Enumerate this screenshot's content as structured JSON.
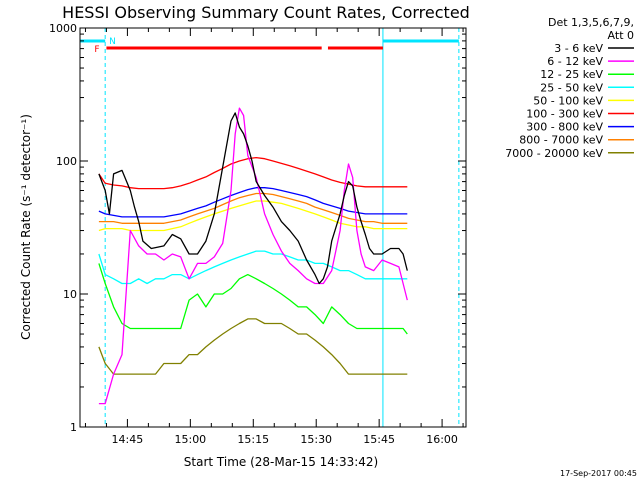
{
  "chart_data": {
    "type": "line",
    "title": "HESSI Observing Summary Count Rates, Corrected",
    "xlabel": "Start Time (28-Mar-15 14:33:42)",
    "ylabel": "Corrected Count Rate (s⁻¹ detector⁻¹)",
    "yscale": "log",
    "ylim": [
      1,
      1000
    ],
    "x_unit": "minutes since 14:33:42",
    "xlim": [
      0,
      92
    ],
    "x_ticks": [
      {
        "label": "14:45",
        "value": 11.3
      },
      {
        "label": "15:00",
        "value": 26.3
      },
      {
        "label": "15:15",
        "value": 41.3
      },
      {
        "label": "15:30",
        "value": 56.3
      },
      {
        "label": "15:45",
        "value": 71.3
      },
      {
        "label": "16:00",
        "value": 86.3
      }
    ],
    "y_ticks": [
      {
        "label": "1",
        "value": 1
      },
      {
        "label": "10",
        "value": 10
      },
      {
        "label": "100",
        "value": 100
      },
      {
        "label": "1000",
        "value": 1000
      }
    ],
    "legend_header": [
      "Det 1,3,5,6,7,9,",
      "Att 0"
    ],
    "legend_position": "right",
    "series": [
      {
        "name": "3 - 6 keV",
        "color": "#000000",
        "x": [
          4.5,
          6,
          7,
          8,
          10,
          12,
          13,
          14,
          15,
          17,
          20,
          22,
          24,
          26,
          28,
          30,
          32,
          34,
          36,
          37,
          38,
          39,
          40,
          41,
          42,
          44,
          46,
          48,
          50,
          52,
          54,
          56,
          57,
          58,
          59,
          60,
          62,
          63,
          64,
          65,
          66,
          67,
          68,
          69,
          70,
          72,
          74,
          76,
          77,
          78
        ],
        "y": [
          80,
          60,
          40,
          80,
          85,
          60,
          45,
          35,
          25,
          22,
          23,
          28,
          26,
          20,
          20,
          25,
          40,
          90,
          200,
          230,
          180,
          160,
          130,
          100,
          70,
          55,
          45,
          35,
          30,
          25,
          18,
          14,
          12,
          13,
          16,
          25,
          40,
          55,
          70,
          65,
          45,
          35,
          28,
          22,
          20,
          20,
          22,
          22,
          20,
          15
        ]
      },
      {
        "name": "6 - 12 keV",
        "color": "#ff00ff",
        "x": [
          4.5,
          6,
          8,
          10,
          12,
          14,
          16,
          18,
          20,
          22,
          24,
          26,
          28,
          30,
          32,
          34,
          36,
          37,
          38,
          39,
          40,
          42,
          44,
          46,
          48,
          50,
          52,
          54,
          56,
          58,
          60,
          62,
          63,
          64,
          65,
          66,
          67,
          68,
          70,
          72,
          74,
          76,
          77,
          78
        ],
        "y": [
          1.5,
          1.5,
          2.5,
          3.5,
          30,
          23,
          20,
          20,
          18,
          20,
          19,
          13,
          17,
          17,
          19,
          24,
          60,
          160,
          250,
          220,
          110,
          75,
          40,
          28,
          21,
          17,
          15,
          13,
          12,
          12,
          15,
          30,
          60,
          95,
          75,
          30,
          20,
          16,
          15,
          18,
          17,
          16,
          12,
          9
        ]
      },
      {
        "name": "12 - 25 keV",
        "color": "#00ff00",
        "x": [
          4.5,
          6,
          8,
          10,
          12,
          14,
          16,
          18,
          20,
          22,
          24,
          26,
          28,
          30,
          32,
          34,
          36,
          38,
          40,
          42,
          44,
          46,
          48,
          50,
          52,
          54,
          56,
          58,
          60,
          62,
          64,
          66,
          68,
          70,
          72,
          74,
          76,
          77,
          78
        ],
        "y": [
          17,
          12,
          8,
          6,
          5.5,
          5.5,
          5.5,
          5.5,
          5.5,
          5.5,
          5.5,
          9,
          10,
          8,
          10,
          10,
          11,
          13,
          14,
          13,
          12,
          11,
          10,
          9,
          8,
          8,
          7,
          6,
          8,
          7,
          6,
          5.5,
          5.5,
          5.5,
          5.5,
          5.5,
          5.5,
          5.5,
          5
        ]
      },
      {
        "name": "25 - 50 keV",
        "color": "#00ffff",
        "x": [
          4.5,
          6,
          8,
          10,
          12,
          14,
          16,
          18,
          20,
          22,
          24,
          26,
          28,
          30,
          32,
          34,
          36,
          38,
          40,
          42,
          44,
          46,
          48,
          50,
          52,
          54,
          56,
          58,
          60,
          62,
          64,
          66,
          68,
          70,
          72,
          74,
          76,
          78
        ],
        "y": [
          20,
          14,
          13,
          12,
          12,
          13,
          12,
          13,
          13,
          14,
          14,
          13,
          14,
          15,
          16,
          17,
          18,
          19,
          20,
          21,
          21,
          20,
          20,
          19,
          18,
          18,
          17,
          17,
          16,
          15,
          15,
          14,
          13,
          13,
          13,
          13,
          13,
          13
        ]
      },
      {
        "name": "50 - 100 keV",
        "color": "#ffff00",
        "x": [
          4.5,
          6,
          8,
          10,
          12,
          14,
          16,
          18,
          20,
          22,
          24,
          26,
          28,
          30,
          32,
          34,
          36,
          38,
          40,
          42,
          44,
          46,
          48,
          50,
          52,
          54,
          56,
          58,
          60,
          62,
          64,
          66,
          68,
          70,
          72,
          74,
          76,
          78
        ],
        "y": [
          30,
          31,
          31,
          31,
          30,
          30,
          30,
          30,
          30,
          31,
          32,
          34,
          36,
          38,
          40,
          42,
          44,
          46,
          48,
          50,
          50,
          49,
          48,
          46,
          44,
          42,
          40,
          38,
          36,
          34,
          33,
          32,
          32,
          31,
          31,
          31,
          31,
          31
        ]
      },
      {
        "name": "100 - 300 keV",
        "color": "#ff0000",
        "x": [
          4.5,
          6,
          8,
          10,
          12,
          14,
          16,
          18,
          20,
          22,
          24,
          26,
          28,
          30,
          32,
          34,
          36,
          38,
          40,
          42,
          44,
          46,
          48,
          50,
          52,
          54,
          56,
          58,
          60,
          62,
          64,
          66,
          68,
          70,
          72,
          74,
          76,
          78
        ],
        "y": [
          80,
          68,
          66,
          65,
          63,
          62,
          62,
          62,
          62,
          63,
          65,
          68,
          72,
          76,
          82,
          88,
          95,
          100,
          104,
          106,
          104,
          100,
          96,
          92,
          88,
          84,
          80,
          76,
          72,
          69,
          67,
          65,
          64,
          64,
          64,
          64,
          64,
          64
        ]
      },
      {
        "name": "300 - 800 keV",
        "color": "#0000ff",
        "x": [
          4.5,
          6,
          8,
          10,
          12,
          14,
          16,
          18,
          20,
          22,
          24,
          26,
          28,
          30,
          32,
          34,
          36,
          38,
          40,
          42,
          44,
          46,
          48,
          50,
          52,
          54,
          56,
          58,
          60,
          62,
          64,
          66,
          68,
          70,
          72,
          74,
          76,
          78
        ],
        "y": [
          42,
          40,
          39,
          38,
          38,
          38,
          38,
          38,
          38,
          39,
          40,
          42,
          44,
          46,
          49,
          52,
          55,
          58,
          61,
          63,
          63,
          62,
          60,
          58,
          56,
          54,
          51,
          48,
          46,
          44,
          42,
          41,
          40,
          40,
          40,
          40,
          40,
          40
        ]
      },
      {
        "name": "800 - 7000 keV",
        "color": "#ff8000",
        "x": [
          4.5,
          6,
          8,
          10,
          12,
          14,
          16,
          18,
          20,
          22,
          24,
          26,
          28,
          30,
          32,
          34,
          36,
          38,
          40,
          42,
          44,
          46,
          48,
          50,
          52,
          54,
          56,
          58,
          60,
          62,
          64,
          66,
          68,
          70,
          72,
          74,
          76,
          78
        ],
        "y": [
          35,
          35,
          35,
          34,
          34,
          34,
          34,
          34,
          34,
          35,
          36,
          38,
          40,
          42,
          44,
          47,
          50,
          53,
          55,
          57,
          57,
          56,
          54,
          52,
          50,
          48,
          45,
          43,
          41,
          39,
          37,
          36,
          35,
          35,
          34,
          34,
          34,
          34
        ]
      },
      {
        "name": "7000 - 20000 keV",
        "color": "#808000",
        "x": [
          4.5,
          6,
          8,
          10,
          12,
          14,
          16,
          18,
          20,
          22,
          24,
          26,
          28,
          30,
          32,
          34,
          36,
          38,
          40,
          42,
          44,
          46,
          48,
          50,
          52,
          54,
          56,
          58,
          60,
          62,
          64,
          66,
          68,
          70,
          72,
          74,
          76,
          78
        ],
        "y": [
          4,
          3,
          2.5,
          2.5,
          2.5,
          2.5,
          2.5,
          2.5,
          3,
          3,
          3,
          3.5,
          3.5,
          4,
          4.5,
          5,
          5.5,
          6,
          6.5,
          6.5,
          6,
          6,
          6,
          5.5,
          5,
          5,
          4.5,
          4,
          3.5,
          3,
          2.5,
          2.5,
          2.5,
          2.5,
          2.5,
          2.5,
          2.5,
          2.5
        ]
      }
    ],
    "night_intervals": [
      [
        0,
        6
      ],
      [
        72.2,
        90.3
      ]
    ],
    "flare_interval": [
      6.3,
      72.2
    ],
    "annotations": [
      "F",
      "N"
    ],
    "timestamp": "17-Sep-2017 00:45"
  }
}
